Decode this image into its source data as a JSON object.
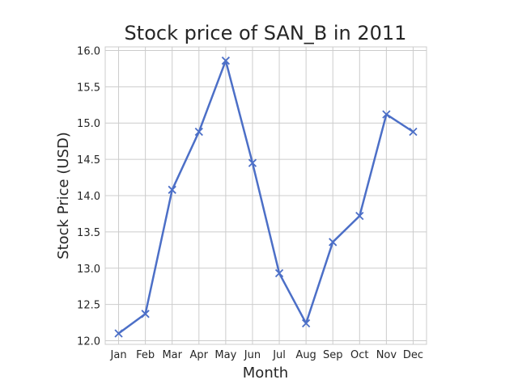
{
  "chart_data": {
    "type": "line",
    "title": "Stock price of SAN_B in 2011",
    "xlabel": "Month",
    "ylabel": "Stock Price (USD)",
    "categories": [
      "Jan",
      "Feb",
      "Mar",
      "Apr",
      "May",
      "Jun",
      "Jul",
      "Aug",
      "Sep",
      "Oct",
      "Nov",
      "Dec"
    ],
    "series": [
      {
        "values": [
          12.1,
          12.37,
          14.08,
          14.88,
          15.86,
          14.45,
          12.93,
          12.24,
          13.36,
          13.72,
          15.12,
          14.88
        ],
        "color": "#4c6fc7",
        "marker": "x"
      }
    ],
    "ylim": [
      11.95,
      16.05
    ],
    "yticks": [
      12.0,
      12.5,
      13.0,
      13.5,
      14.0,
      14.5,
      15.0,
      15.5,
      16.0
    ],
    "ytick_labels": [
      "12.0",
      "12.5",
      "13.0",
      "13.5",
      "14.0",
      "14.5",
      "15.0",
      "15.5",
      "16.0"
    ],
    "grid": true,
    "colors": {
      "grid": "#cccccc",
      "spine": "#cccccc",
      "text": "#262626",
      "background": "#ffffff"
    }
  }
}
